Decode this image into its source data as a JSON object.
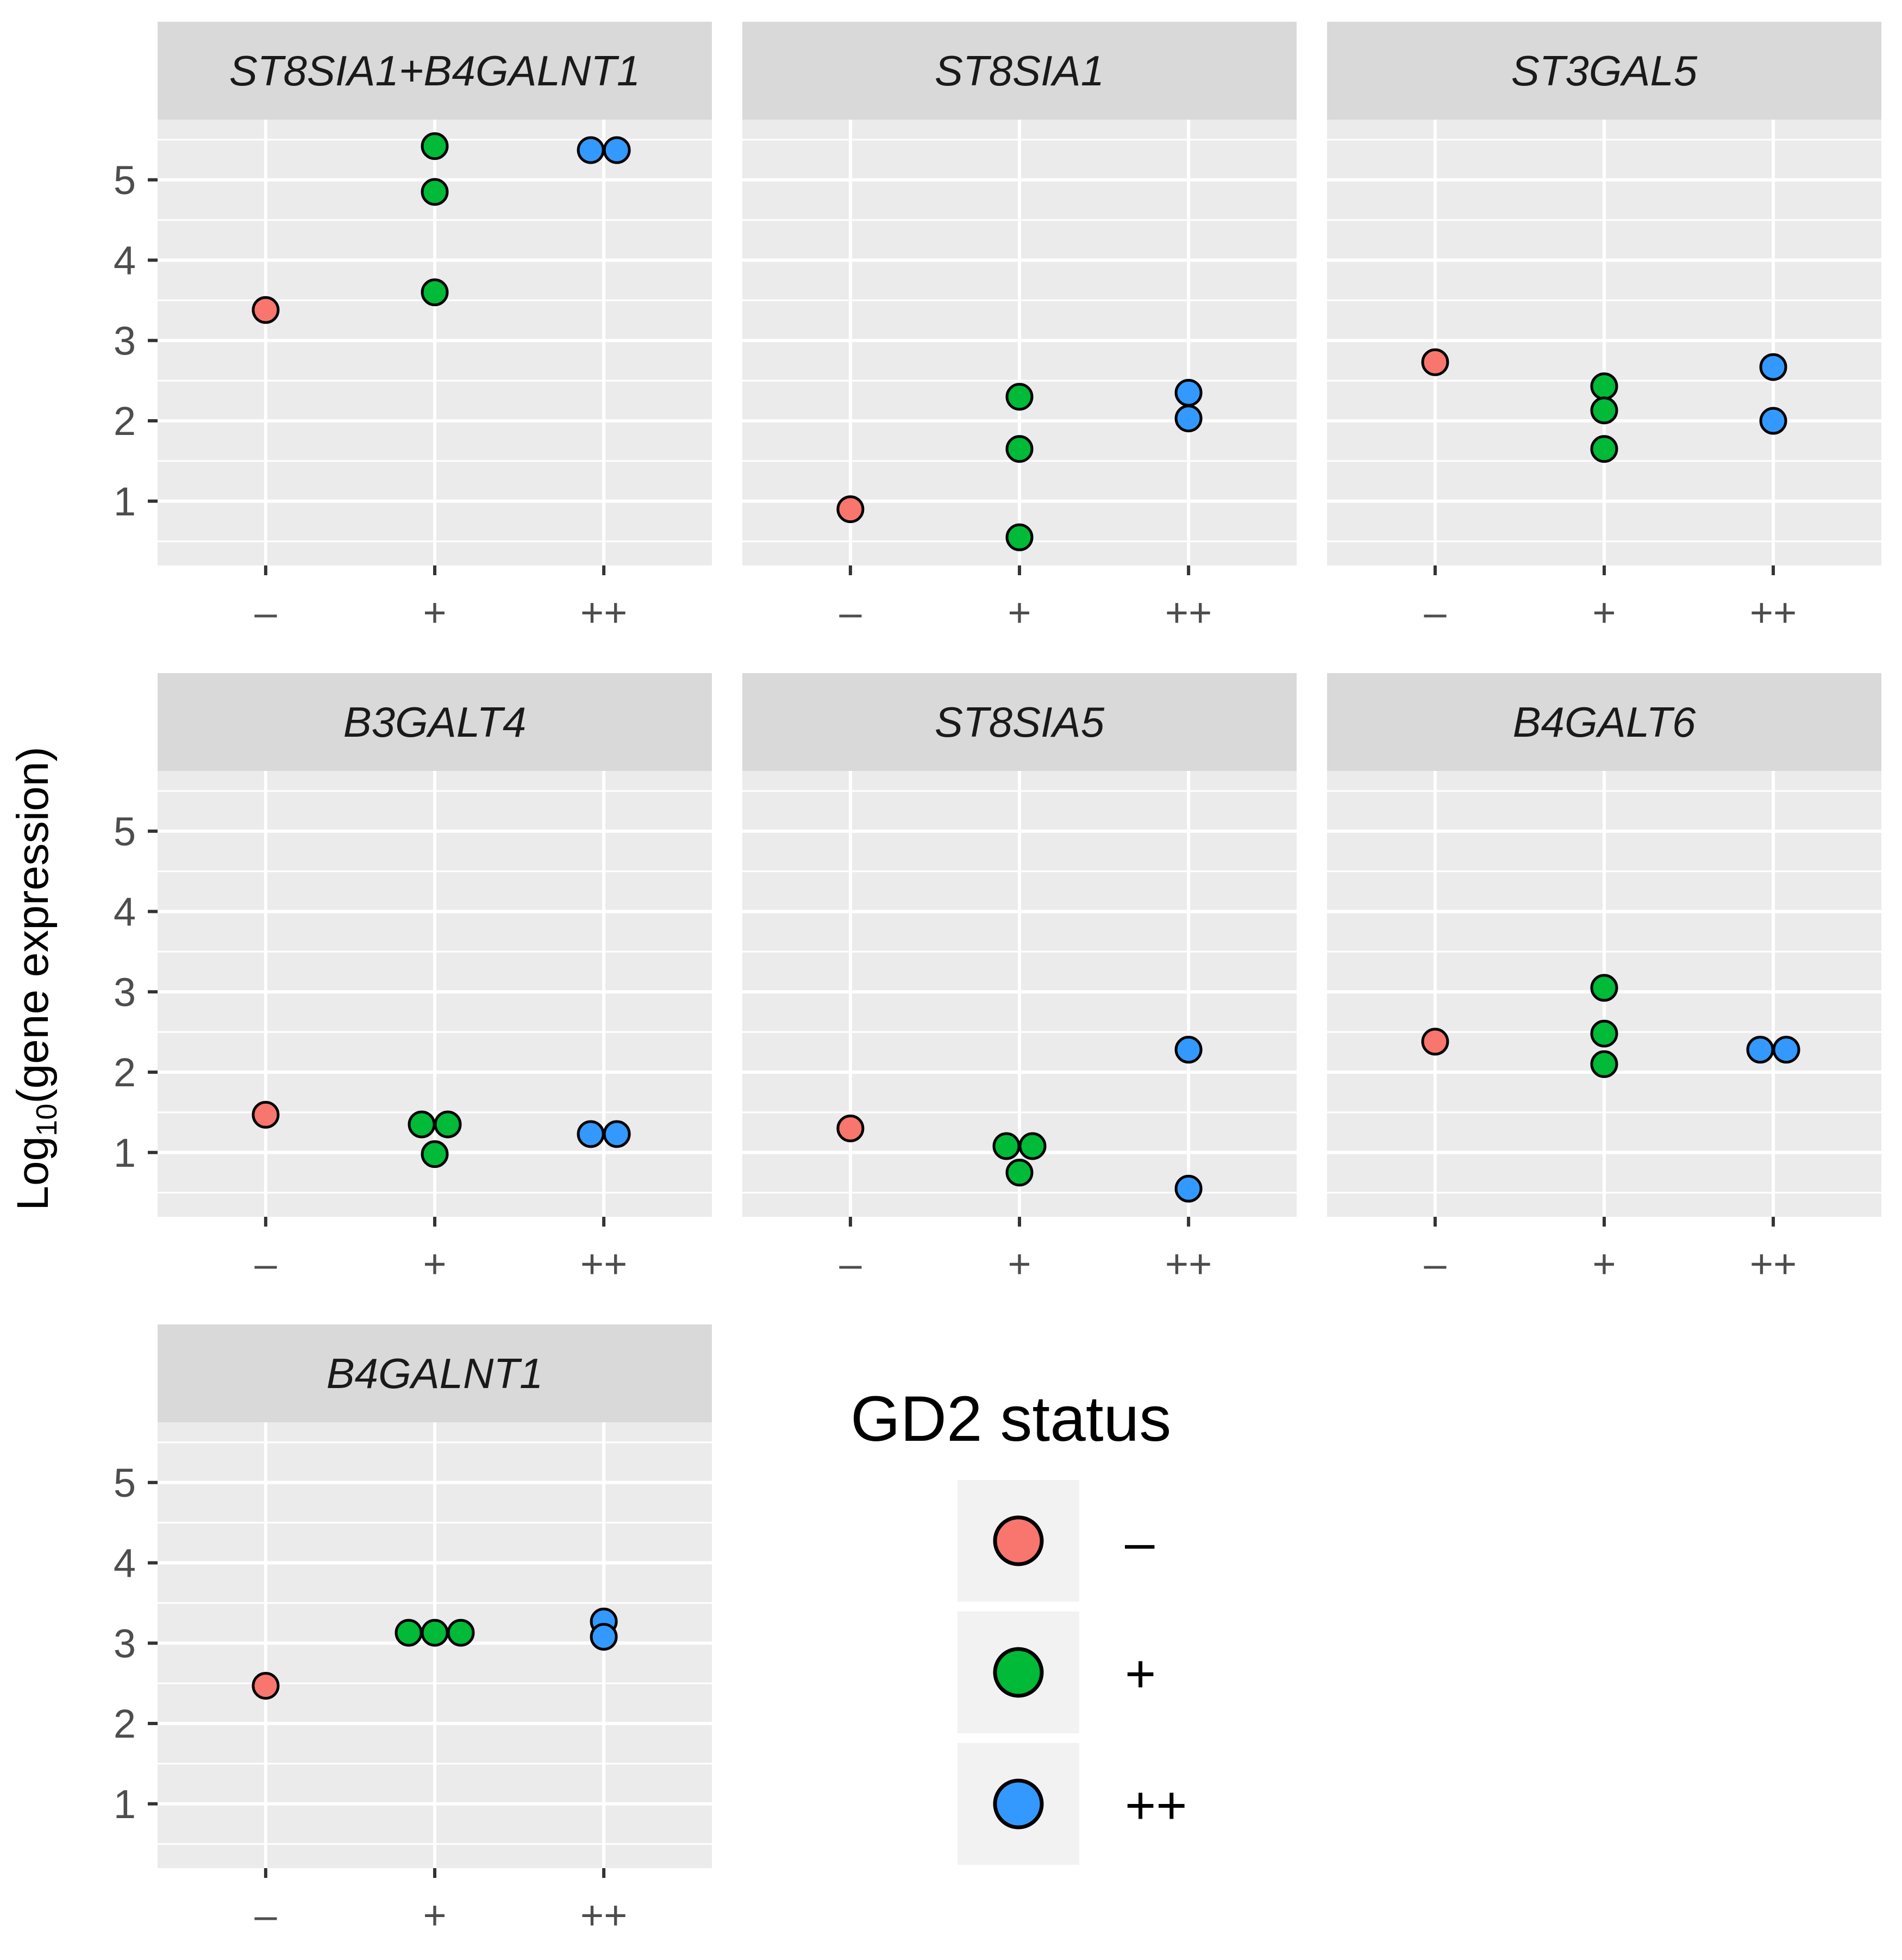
{
  "chart_data": {
    "type": "scatter",
    "ylabel": "Log10(gene expression)",
    "ylabel_base": "Log",
    "ylabel_subscript": "10",
    "ylabel_rest": "(gene expression)",
    "categories": [
      "–",
      "+",
      "++"
    ],
    "y_ticks": [
      1,
      2,
      3,
      4,
      5
    ],
    "ylim": [
      0.2,
      5.75
    ],
    "legend": {
      "title": "GD2 status",
      "entries": [
        {
          "label": "–",
          "color": "#F8766D"
        },
        {
          "label": "+",
          "color": "#00BA38"
        },
        {
          "label": "++",
          "color": "#3399FF"
        }
      ]
    },
    "panels": [
      {
        "title": "ST8SIA1+B4GALNT1",
        "points": [
          {
            "group": "–",
            "jitter": 0,
            "y": 3.38
          },
          {
            "group": "+",
            "jitter": 0,
            "y": 5.42
          },
          {
            "group": "+",
            "jitter": 0,
            "y": 4.85
          },
          {
            "group": "+",
            "jitter": 0,
            "y": 3.6
          },
          {
            "group": "++",
            "jitter": -1,
            "y": 5.37
          },
          {
            "group": "++",
            "jitter": 1,
            "y": 5.37
          }
        ]
      },
      {
        "title": "ST8SIA1",
        "points": [
          {
            "group": "–",
            "jitter": 0,
            "y": 0.9
          },
          {
            "group": "+",
            "jitter": 0,
            "y": 2.3
          },
          {
            "group": "+",
            "jitter": 0,
            "y": 1.65
          },
          {
            "group": "+",
            "jitter": 0,
            "y": 0.55
          },
          {
            "group": "++",
            "jitter": 0,
            "y": 2.35
          },
          {
            "group": "++",
            "jitter": 0,
            "y": 2.03
          }
        ]
      },
      {
        "title": "ST3GAL5",
        "points": [
          {
            "group": "–",
            "jitter": 0,
            "y": 2.73
          },
          {
            "group": "+",
            "jitter": 0,
            "y": 2.43
          },
          {
            "group": "+",
            "jitter": 0,
            "y": 2.13
          },
          {
            "group": "+",
            "jitter": 0,
            "y": 1.65
          },
          {
            "group": "++",
            "jitter": 0,
            "y": 2.67
          },
          {
            "group": "++",
            "jitter": 0,
            "y": 2.0
          }
        ]
      },
      {
        "title": "B3GALT4",
        "points": [
          {
            "group": "–",
            "jitter": 0,
            "y": 1.47
          },
          {
            "group": "+",
            "jitter": -1,
            "y": 1.35
          },
          {
            "group": "+",
            "jitter": 1,
            "y": 1.35
          },
          {
            "group": "+",
            "jitter": 0,
            "y": 0.98
          },
          {
            "group": "++",
            "jitter": -1,
            "y": 1.23
          },
          {
            "group": "++",
            "jitter": 1,
            "y": 1.23
          }
        ]
      },
      {
        "title": "ST8SIA5",
        "points": [
          {
            "group": "–",
            "jitter": 0,
            "y": 1.3
          },
          {
            "group": "+",
            "jitter": -1,
            "y": 1.08
          },
          {
            "group": "+",
            "jitter": 1,
            "y": 1.08
          },
          {
            "group": "+",
            "jitter": 0,
            "y": 0.75
          },
          {
            "group": "++",
            "jitter": 0,
            "y": 2.28
          },
          {
            "group": "++",
            "jitter": 0,
            "y": 0.55
          }
        ]
      },
      {
        "title": "B4GALT6",
        "points": [
          {
            "group": "–",
            "jitter": 0,
            "y": 2.38
          },
          {
            "group": "+",
            "jitter": 0,
            "y": 3.05
          },
          {
            "group": "+",
            "jitter": 0,
            "y": 2.48
          },
          {
            "group": "+",
            "jitter": 0,
            "y": 2.1
          },
          {
            "group": "++",
            "jitter": -1,
            "y": 2.28
          },
          {
            "group": "++",
            "jitter": 1,
            "y": 2.28
          }
        ]
      },
      {
        "title": "B4GALNT1",
        "points": [
          {
            "group": "–",
            "jitter": 0,
            "y": 2.47
          },
          {
            "group": "+",
            "jitter": -2,
            "y": 3.13
          },
          {
            "group": "+",
            "jitter": 0,
            "y": 3.13
          },
          {
            "group": "+",
            "jitter": 2,
            "y": 3.13
          },
          {
            "group": "++",
            "jitter": 0,
            "y": 3.27
          },
          {
            "group": "++",
            "jitter": 0,
            "y": 3.08
          }
        ]
      }
    ]
  }
}
